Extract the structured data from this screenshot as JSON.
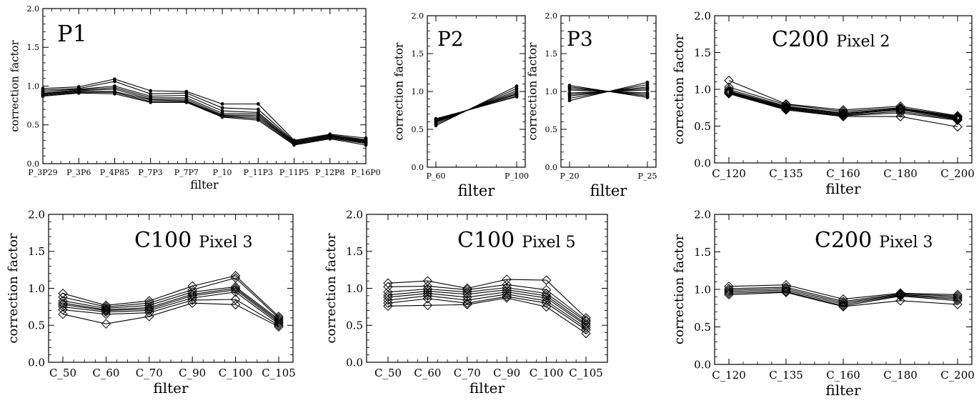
{
  "chart_data": [
    {
      "type": "line",
      "title": "P1",
      "xlabel": "filter",
      "ylabel": "correction factor",
      "ylim": [
        0,
        2
      ],
      "yticks": [
        "0.0",
        "0.5",
        "1.0",
        "1.5",
        "2.0"
      ],
      "categories": [
        "P_3P29",
        "P_3P6",
        "P_4P85",
        "P_7P3",
        "P_7P7",
        "P_10",
        "P_11P3",
        "P_11P5",
        "P_12P8",
        "P_16P0"
      ],
      "series": [
        {
          "values": [
            0.97,
            0.99,
            1.09,
            0.94,
            0.93,
            0.77,
            0.77,
            0.3,
            0.38,
            0.33
          ]
        },
        {
          "values": [
            0.95,
            0.97,
            1.06,
            0.9,
            0.91,
            0.72,
            0.7,
            0.29,
            0.37,
            0.31
          ]
        },
        {
          "values": [
            0.93,
            0.96,
            1.0,
            0.87,
            0.88,
            0.68,
            0.66,
            0.28,
            0.36,
            0.3
          ]
        },
        {
          "values": [
            0.91,
            0.95,
            0.98,
            0.85,
            0.85,
            0.65,
            0.64,
            0.27,
            0.35,
            0.29
          ]
        },
        {
          "values": [
            0.9,
            0.94,
            0.96,
            0.83,
            0.83,
            0.63,
            0.62,
            0.26,
            0.34,
            0.28
          ]
        },
        {
          "values": [
            0.89,
            0.93,
            0.93,
            0.82,
            0.81,
            0.62,
            0.6,
            0.26,
            0.34,
            0.27
          ]
        },
        {
          "values": [
            0.88,
            0.92,
            0.92,
            0.8,
            0.8,
            0.61,
            0.58,
            0.25,
            0.33,
            0.26
          ]
        },
        {
          "values": [
            0.87,
            0.91,
            0.9,
            0.79,
            0.79,
            0.6,
            0.56,
            0.24,
            0.32,
            0.24
          ]
        }
      ]
    },
    {
      "type": "line",
      "title": "P2",
      "xlabel": "filter",
      "ylabel": "correction factor",
      "ylim": [
        0,
        2
      ],
      "yticks": [
        "0.0",
        "0.5",
        "1.0",
        "1.5",
        "2.0"
      ],
      "categories": [
        "P_60",
        "P_100"
      ],
      "series": [
        {
          "values": [
            0.55,
            1.07
          ]
        },
        {
          "values": [
            0.57,
            1.04
          ]
        },
        {
          "values": [
            0.59,
            1.01
          ]
        },
        {
          "values": [
            0.6,
            0.99
          ]
        },
        {
          "values": [
            0.61,
            0.97
          ]
        },
        {
          "values": [
            0.62,
            0.96
          ]
        },
        {
          "values": [
            0.63,
            0.94
          ]
        },
        {
          "values": [
            0.64,
            0.93
          ]
        }
      ]
    },
    {
      "type": "line",
      "title": "P3",
      "xlabel": "filter",
      "ylabel": "correction factor",
      "ylim": [
        0,
        2
      ],
      "yticks": [
        "0.0",
        "0.5",
        "1.0",
        "1.5",
        "2.0"
      ],
      "categories": [
        "P_20",
        "P_25"
      ],
      "series": [
        {
          "values": [
            1.08,
            0.92
          ]
        },
        {
          "values": [
            1.06,
            0.94
          ]
        },
        {
          "values": [
            1.04,
            0.96
          ]
        },
        {
          "values": [
            1.02,
            0.98
          ]
        },
        {
          "values": [
            0.98,
            1.02
          ]
        },
        {
          "values": [
            0.96,
            1.04
          ]
        },
        {
          "values": [
            0.94,
            1.06
          ]
        },
        {
          "values": [
            0.91,
            1.09
          ]
        },
        {
          "values": [
            0.88,
            1.12
          ]
        }
      ]
    },
    {
      "type": "line",
      "title": "C200",
      "subtitle": "Pixel 2",
      "xlabel": "filter",
      "ylabel": "correction factor",
      "ylim": [
        0,
        2
      ],
      "yticks": [
        "0.0",
        "0.5",
        "1.0",
        "1.5",
        "2.0"
      ],
      "categories": [
        "C_120",
        "C_135",
        "C_160",
        "C_180",
        "C_200"
      ],
      "series": [
        {
          "values": [
            1.12,
            0.8,
            0.72,
            0.77,
            0.64
          ]
        },
        {
          "values": [
            1.03,
            0.79,
            0.7,
            0.75,
            0.63
          ]
        },
        {
          "values": [
            1.0,
            0.77,
            0.68,
            0.74,
            0.62
          ]
        },
        {
          "values": [
            0.98,
            0.76,
            0.67,
            0.73,
            0.61
          ]
        },
        {
          "values": [
            0.97,
            0.75,
            0.66,
            0.72,
            0.6
          ]
        },
        {
          "values": [
            0.96,
            0.74,
            0.65,
            0.7,
            0.59
          ]
        },
        {
          "values": [
            0.95,
            0.73,
            0.64,
            0.68,
            0.58
          ]
        },
        {
          "values": [
            0.94,
            0.72,
            0.63,
            0.63,
            0.49
          ]
        }
      ]
    },
    {
      "type": "line",
      "title": "C100",
      "subtitle": "Pixel 3",
      "xlabel": "filter",
      "ylabel": "correction factor",
      "ylim": [
        0,
        2
      ],
      "yticks": [
        "0.0",
        "0.5",
        "1.0",
        "1.5",
        "2.0"
      ],
      "categories": [
        "C_50",
        "C_60",
        "C_70",
        "C_90",
        "C_100",
        "C_105"
      ],
      "series": [
        {
          "values": [
            0.93,
            0.77,
            0.83,
            1.03,
            1.17,
            0.62
          ]
        },
        {
          "values": [
            0.88,
            0.75,
            0.8,
            0.98,
            1.14,
            0.6
          ]
        },
        {
          "values": [
            0.83,
            0.73,
            0.77,
            0.95,
            1.02,
            0.58
          ]
        },
        {
          "values": [
            0.8,
            0.71,
            0.74,
            0.92,
            1.0,
            0.56
          ]
        },
        {
          "values": [
            0.78,
            0.7,
            0.72,
            0.9,
            0.98,
            0.54
          ]
        },
        {
          "values": [
            0.75,
            0.68,
            0.7,
            0.87,
            0.95,
            0.52
          ]
        },
        {
          "values": [
            0.71,
            0.65,
            0.67,
            0.84,
            0.85,
            0.5
          ]
        },
        {
          "values": [
            0.65,
            0.52,
            0.62,
            0.8,
            0.78,
            0.48
          ]
        }
      ]
    },
    {
      "type": "line",
      "title": "C100",
      "subtitle": "Pixel 5",
      "xlabel": "filter",
      "ylabel": "correction factor",
      "ylim": [
        0,
        2
      ],
      "yticks": [
        "0.0",
        "0.5",
        "1.0",
        "1.5",
        "2.0"
      ],
      "categories": [
        "C_50",
        "C_60",
        "C_70",
        "C_90",
        "C_100",
        "C_105"
      ],
      "series": [
        {
          "values": [
            1.07,
            1.1,
            1.0,
            1.12,
            1.11,
            0.6
          ]
        },
        {
          "values": [
            1.02,
            1.03,
            0.98,
            1.05,
            0.98,
            0.57
          ]
        },
        {
          "values": [
            0.95,
            0.99,
            0.95,
            1.01,
            0.93,
            0.55
          ]
        },
        {
          "values": [
            0.91,
            0.96,
            0.92,
            0.98,
            0.9,
            0.52
          ]
        },
        {
          "values": [
            0.88,
            0.93,
            0.88,
            0.95,
            0.87,
            0.5
          ]
        },
        {
          "values": [
            0.84,
            0.9,
            0.84,
            0.92,
            0.83,
            0.47
          ]
        },
        {
          "values": [
            0.8,
            0.86,
            0.8,
            0.89,
            0.8,
            0.44
          ]
        },
        {
          "values": [
            0.76,
            0.77,
            0.78,
            0.87,
            0.75,
            0.39
          ]
        }
      ]
    },
    {
      "type": "line",
      "title": "C200",
      "subtitle": "Pixel 3",
      "xlabel": "filter",
      "ylabel": "correction factor",
      "ylim": [
        0,
        2
      ],
      "yticks": [
        "0.0",
        "0.5",
        "1.0",
        "1.5",
        "2.0"
      ],
      "categories": [
        "C_120",
        "C_135",
        "C_160",
        "C_180",
        "C_200"
      ],
      "series": [
        {
          "values": [
            1.04,
            1.06,
            0.87,
            0.95,
            0.93
          ]
        },
        {
          "values": [
            1.01,
            1.03,
            0.84,
            0.94,
            0.91
          ]
        },
        {
          "values": [
            0.99,
            1.01,
            0.82,
            0.93,
            0.89
          ]
        },
        {
          "values": [
            0.97,
            0.99,
            0.8,
            0.92,
            0.87
          ]
        },
        {
          "values": [
            0.95,
            0.97,
            0.78,
            0.91,
            0.85
          ]
        },
        {
          "values": [
            0.93,
            0.96,
            0.77,
            0.85,
            0.8
          ]
        }
      ]
    }
  ]
}
